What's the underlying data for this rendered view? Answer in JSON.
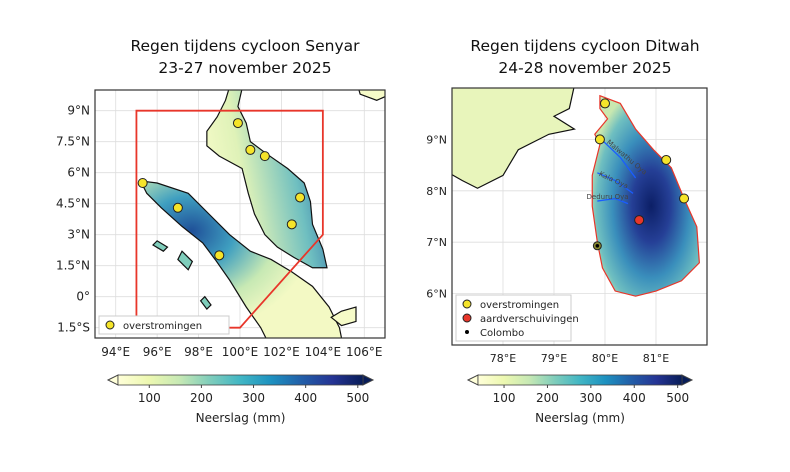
{
  "maps": [
    {
      "title_line1": "Regen tijdens cycloon Senyar",
      "title_line2": "23-27 november 2025",
      "extent": {
        "lon": [
          93,
          107
        ],
        "lat": [
          -2,
          10
        ]
      },
      "lon_ticks": [
        {
          "v": 94,
          "label": "94°E"
        },
        {
          "v": 96,
          "label": "96°E"
        },
        {
          "v": 98,
          "label": "98°E"
        },
        {
          "v": 100,
          "label": "100°E"
        },
        {
          "v": 102,
          "label": "102°E"
        },
        {
          "v": 104,
          "label": "104°E"
        },
        {
          "v": 106,
          "label": "106°E"
        }
      ],
      "lat_ticks": [
        {
          "v": 9,
          "label": "9°N"
        },
        {
          "v": 7.5,
          "label": "7.5°N"
        },
        {
          "v": 6,
          "label": "6°N"
        },
        {
          "v": 4.5,
          "label": "4.5°N"
        },
        {
          "v": 3,
          "label": "3°N"
        },
        {
          "v": 1.5,
          "label": "1.5°N"
        },
        {
          "v": 0,
          "label": "0°"
        },
        {
          "v": -1.5,
          "label": "1.5°S"
        }
      ],
      "region_outline": [
        [
          95,
          9
        ],
        [
          104,
          9
        ],
        [
          104,
          3
        ],
        [
          100,
          -1.5
        ],
        [
          95,
          -1.5
        ]
      ],
      "floods": [
        [
          99.9,
          8.4
        ],
        [
          100.5,
          7.1
        ],
        [
          101.2,
          6.8
        ],
        [
          102.9,
          4.8
        ],
        [
          102.5,
          3.5
        ],
        [
          95.3,
          5.5
        ],
        [
          97.0,
          4.3
        ],
        [
          99.0,
          2.0
        ]
      ],
      "legend": [
        "overstromingen"
      ],
      "colorbar": {
        "label": "Neerslag (mm)",
        "ticks": [
          100,
          200,
          300,
          400,
          500
        ],
        "range": [
          40,
          510
        ]
      }
    },
    {
      "title_line1": "Regen tijdens cycloon Ditwah",
      "title_line2": "24-28 november 2025",
      "extent": {
        "lon": [
          77,
          82
        ],
        "lat": [
          5,
          10
        ]
      },
      "lon_ticks": [
        {
          "v": 78,
          "label": "78°E"
        },
        {
          "v": 79,
          "label": "79°E"
        },
        {
          "v": 80,
          "label": "80°E"
        },
        {
          "v": 81,
          "label": "81°E"
        }
      ],
      "lat_ticks": [
        {
          "v": 9,
          "label": "9°N"
        },
        {
          "v": 8,
          "label": "8°N"
        },
        {
          "v": 7,
          "label": "7°N"
        },
        {
          "v": 6,
          "label": "6°N"
        }
      ],
      "rivers": [
        "Malwathu Oya",
        "Kala Oya",
        "Deduru Oya"
      ],
      "floods": [
        [
          80.0,
          9.7
        ],
        [
          79.9,
          9.0
        ],
        [
          81.2,
          8.6
        ],
        [
          81.55,
          7.85
        ]
      ],
      "landslides": [
        [
          80.67,
          7.43
        ]
      ],
      "colombo": [
        79.85,
        6.93
      ],
      "legend": [
        "overstromingen",
        "aardverschuivingen",
        "Colombo"
      ],
      "colorbar": {
        "label": "Neerslag (mm)",
        "ticks": [
          100,
          200,
          300,
          400,
          500
        ],
        "range": [
          40,
          510
        ]
      }
    }
  ],
  "colors": {
    "flood": "#f5e42a",
    "landslide": "#e8362a",
    "outline": "#e8362a",
    "colormap": [
      "#ffffd9",
      "#edf8b1",
      "#c7e9b4",
      "#7fcdbb",
      "#41b6c4",
      "#1d91c0",
      "#225ea8",
      "#253494",
      "#081d58"
    ]
  }
}
